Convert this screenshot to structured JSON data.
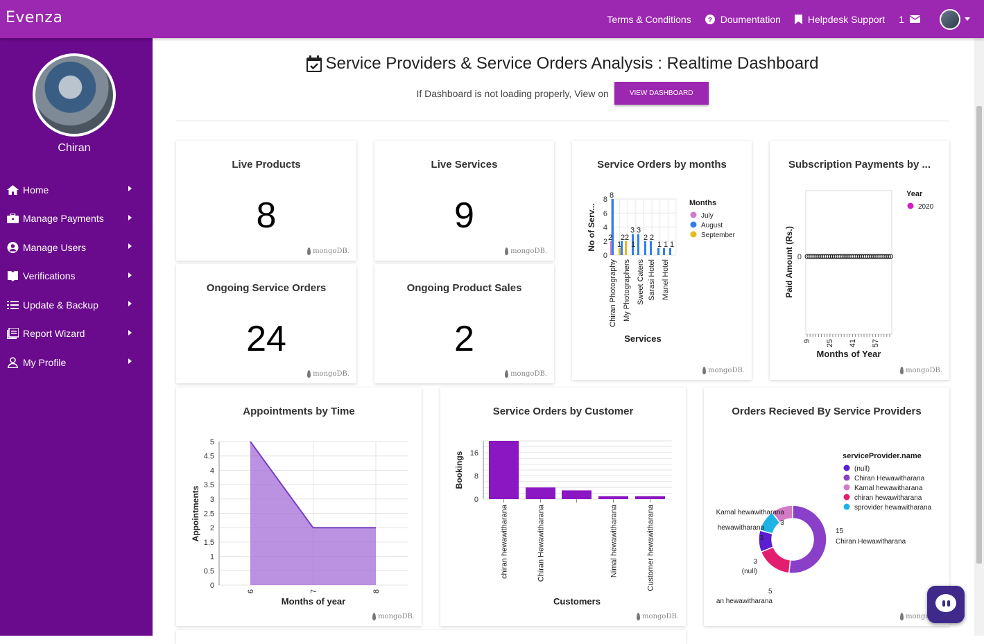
{
  "topbar": {
    "brand": "Evenza",
    "links": [
      {
        "label": "Terms & Conditions"
      },
      {
        "label": "Doumentation"
      },
      {
        "label": "Helpdesk Support"
      }
    ],
    "notification_count": "1"
  },
  "sidebar": {
    "user_name": "Chiran",
    "items": [
      {
        "label": "Home"
      },
      {
        "label": "Manage Payments"
      },
      {
        "label": "Manage Users"
      },
      {
        "label": "Verifications"
      },
      {
        "label": "Update & Backup"
      },
      {
        "label": "Report Wizard"
      },
      {
        "label": "My Profile"
      }
    ]
  },
  "dashboard": {
    "title": "Service Providers & Service Orders Analysis : Realtime Dashboard",
    "notice": "If Dashboard is not loading properly, View on",
    "button": "VIEW DASHBOARD",
    "brand_mark": "mongoDB."
  },
  "kpis": {
    "live_products": {
      "title": "Live Products",
      "value": "8"
    },
    "live_services": {
      "title": "Live Services",
      "value": "9"
    },
    "ongoing_service_orders": {
      "title": "Ongoing Service Orders",
      "value": "24"
    },
    "ongoing_product_sales": {
      "title": "Ongoing Product Sales",
      "value": "2"
    }
  },
  "chart_data": [
    {
      "type": "bar",
      "title": "Service Orders by months",
      "xlabel": "Services",
      "ylabel": "No of Serv...",
      "ylim": [
        0,
        8
      ],
      "yticks": [
        "0",
        "2",
        "4",
        "6",
        "8"
      ],
      "legend_title": "Months",
      "categories": [
        "Chiran Photography",
        "My Photographers",
        "Sweet Caters",
        "Sarasi Hotel",
        "Manel Hotel"
      ],
      "bar_labels": [
        "2",
        "8",
        "1",
        "2",
        "2",
        "1",
        "3",
        "3",
        "2",
        "2",
        "1",
        "1",
        "1"
      ],
      "series": [
        {
          "name": "July",
          "color": "#d478c8"
        },
        {
          "name": "August",
          "color": "#2f7ff0"
        },
        {
          "name": "September",
          "color": "#e8b91d"
        }
      ]
    },
    {
      "type": "scatter",
      "title": "Subscription Payments by ...",
      "xlabel": "Months of Year",
      "ylabel": "Paid Amount (Rs.)",
      "xticks": [
        "9",
        "25",
        "41",
        "57"
      ],
      "yticks": [
        "0"
      ],
      "legend_title": "Year",
      "series": [
        {
          "name": "2020",
          "color": "#d21ec8"
        }
      ]
    },
    {
      "type": "area",
      "title": "Appointments by Time",
      "xlabel": "Months of year",
      "ylabel": "Appointments",
      "x": [
        6,
        7,
        8
      ],
      "values": [
        5,
        2,
        2
      ],
      "ylim": [
        0,
        5
      ],
      "yticks": [
        "0",
        "0.5",
        "1",
        "1.5",
        "2",
        "2.5",
        "3",
        "3.5",
        "4",
        "4.5",
        "5"
      ],
      "xticks": [
        "6",
        "7",
        "8"
      ],
      "color": "#9c64d4"
    },
    {
      "type": "bar",
      "title": "Service Orders by Customer",
      "xlabel": "Customers",
      "ylabel": "Bookings",
      "yticks": [
        "0",
        "8",
        "16"
      ],
      "ylim": [
        0,
        20
      ],
      "categories": [
        "chiran hewawitharana",
        "Chiran Hewawitharana",
        "",
        "Nimal hewawitharana",
        "Customer hewawitharana"
      ],
      "values": [
        20,
        4,
        3,
        1,
        1
      ],
      "color": "#8b17c2"
    },
    {
      "type": "pie",
      "title": "Orders Recieved By Service Providers",
      "legend_title": "serviceProvider.name",
      "slices": [
        {
          "name": "Chiran Hewawitharana",
          "value": 15,
          "color": "#8a3fc9",
          "label": "15",
          "label_name": "Chiran Hewawitharana"
        },
        {
          "name": "chiran hewawitharana",
          "value": 5,
          "color": "#e31e6e",
          "label": "5",
          "label_name": "an hewawitharana"
        },
        {
          "name": "(null)",
          "value": 3,
          "color": "#5a1fd1",
          "label": "3",
          "label_name": "(null)"
        },
        {
          "name": "sprovider hewawitharana",
          "value": 3,
          "color": "#1fb3e5",
          "label": "3",
          "label_name": "hewawitharana"
        },
        {
          "name": "Kamal hewawitharana",
          "value": 3,
          "color": "#d47ac8",
          "label": "3",
          "label_name": "Kamal hewawitharana"
        }
      ],
      "legend": [
        "(null)",
        "Chiran Hewawitharana",
        "Kamal hewawitharana",
        "chiran hewawitharana",
        "sprovider hewawitharana"
      ],
      "legend_colors": [
        "#5a1fd1",
        "#8a3fc9",
        "#d47ac8",
        "#e31e6e",
        "#1fb3e5"
      ]
    }
  ]
}
